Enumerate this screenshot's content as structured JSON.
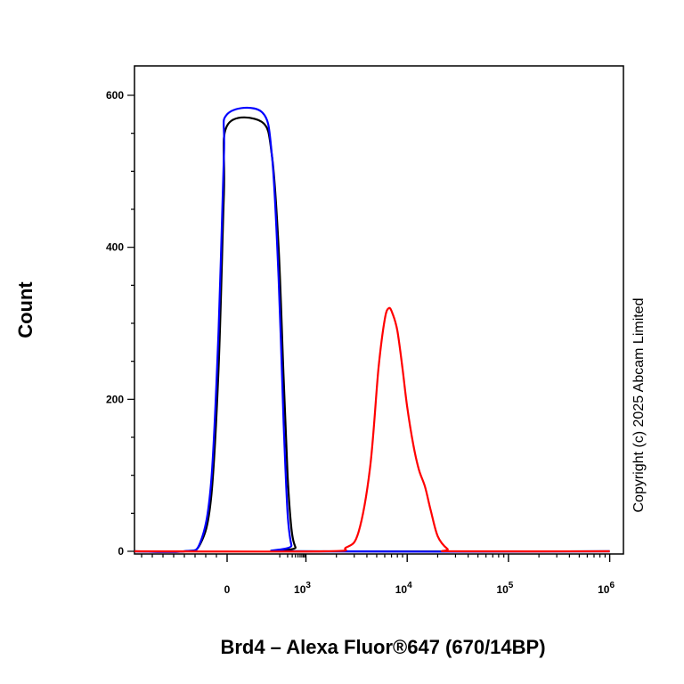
{
  "chart_data": {
    "type": "line",
    "title": "",
    "xlabel": "Brd4 – Alexa Fluor®647 (670/14BP)",
    "ylabel": "Count",
    "x_scale": "biexponential",
    "xlim": [
      -1000,
      1000000
    ],
    "ylim": [
      0,
      650
    ],
    "y_ticks": [
      "0",
      "200",
      "400",
      "600"
    ],
    "y_tick_values": [
      0,
      200,
      400,
      600
    ],
    "x_ticks": [
      {
        "value": 0,
        "base": "0",
        "exp": ""
      },
      {
        "value": 1000,
        "base": "10",
        "exp": "3"
      },
      {
        "value": 10000,
        "base": "10",
        "exp": "4"
      },
      {
        "value": 100000,
        "base": "10",
        "exp": "5"
      },
      {
        "value": 1000000,
        "base": "10",
        "exp": "6"
      }
    ],
    "grid": false,
    "legend": "none",
    "series": [
      {
        "color": "#000000",
        "x": [
          -1000,
          -400,
          -250,
          -150,
          -80,
          -30,
          0,
          20,
          50,
          90,
          140,
          200,
          280,
          400,
          600,
          1000000
        ],
        "y": [
          0,
          0,
          10,
          70,
          240,
          470,
          560,
          565,
          520,
          400,
          230,
          100,
          30,
          5,
          0,
          0
        ]
      },
      {
        "color": "#0000ff",
        "x": [
          -1000,
          -400,
          -250,
          -150,
          -80,
          -30,
          0,
          20,
          50,
          90,
          140,
          200,
          280,
          400,
          1000000
        ],
        "y": [
          0,
          0,
          12,
          90,
          290,
          520,
          575,
          578,
          520,
          360,
          170,
          50,
          8,
          0,
          0
        ]
      },
      {
        "color": "#ff0000",
        "x": [
          -1000,
          1500,
          2500,
          3300,
          4300,
          5200,
          6000,
          6600,
          7200,
          8000,
          9000,
          10000,
          11500,
          13000,
          15000,
          17000,
          20000,
          25000,
          30000,
          1000000
        ],
        "y": [
          0,
          0,
          5,
          25,
          110,
          240,
          305,
          320,
          312,
          290,
          240,
          190,
          140,
          108,
          85,
          55,
          20,
          3,
          0,
          0
        ]
      }
    ]
  },
  "watermark": "Copyright (c) 2025 Abcam Limited"
}
